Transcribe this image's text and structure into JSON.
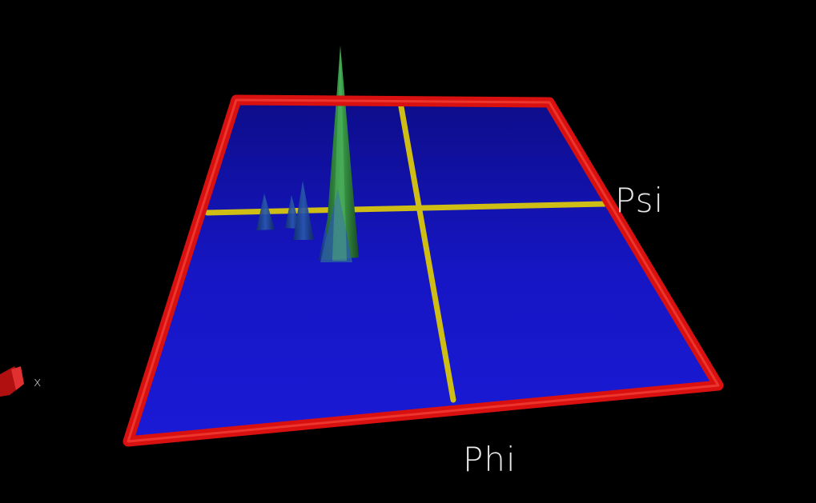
{
  "scene": {
    "background": "#000000",
    "plane_color": "#1414c8",
    "frame_color": "#e01010",
    "crosshair_color": "#d8c81a",
    "peak_color_main": "#2e8a3a",
    "peak_color_minor": "#1a4a9a"
  },
  "axes": {
    "x_axis_label": "Phi",
    "y_axis_label": "Psi",
    "orientation_label": "x"
  }
}
